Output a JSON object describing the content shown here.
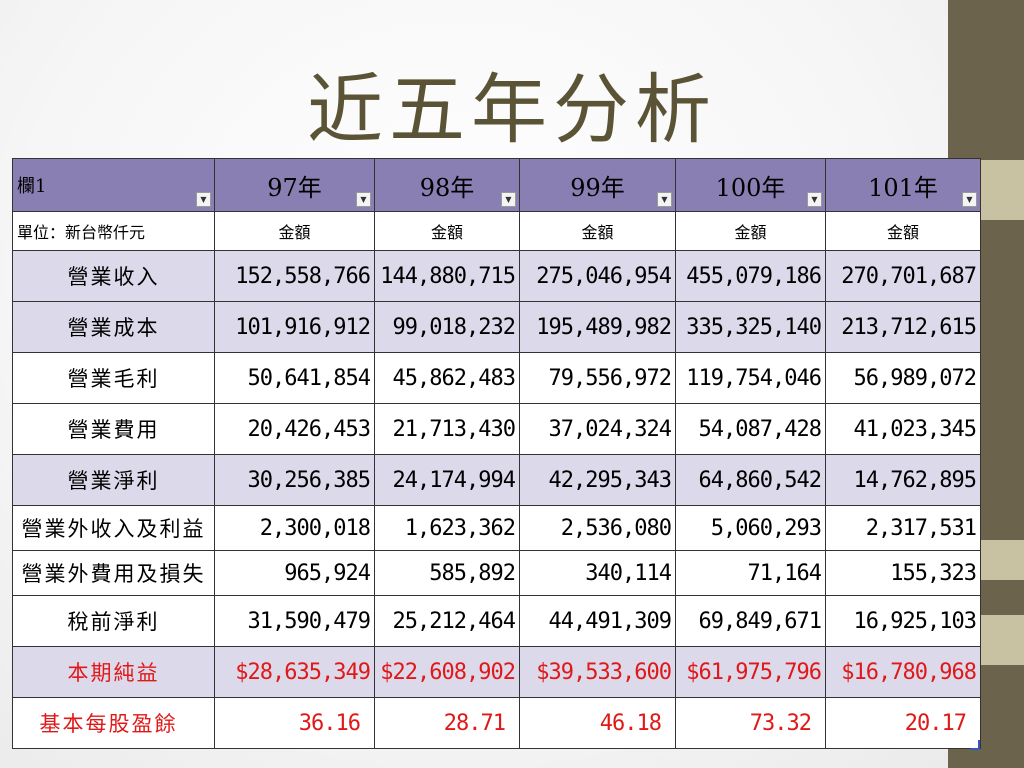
{
  "slide": {
    "title": "近五年分析",
    "accent_colors": {
      "sidebar": "#6b634b",
      "header": "#8a7fb2",
      "shade": "#dcd9ea",
      "highlight": "#e01818"
    }
  },
  "table": {
    "corner_header": "欄1",
    "columns": [
      "97年",
      "98年",
      "99年",
      "100年",
      "101年"
    ],
    "unit_label": "單位：新台幣仟元",
    "unit_cells": [
      "金額",
      "金額",
      "金額",
      "金額",
      "金額"
    ],
    "rows": [
      {
        "label": "營業收入",
        "values": [
          "152,558,766",
          "144,880,715",
          "275,046,954",
          "455,079,186",
          "270,701,687"
        ]
      },
      {
        "label": "營業成本",
        "values": [
          "101,916,912",
          "99,018,232",
          "195,489,982",
          "335,325,140",
          "213,712,615"
        ]
      },
      {
        "label": "營業毛利",
        "values": [
          "50,641,854",
          "45,862,483",
          "79,556,972",
          "119,754,046",
          "56,989,072"
        ]
      },
      {
        "label": "營業費用",
        "values": [
          "20,426,453",
          "21,713,430",
          "37,024,324",
          "54,087,428",
          "41,023,345"
        ]
      },
      {
        "label": "營業淨利",
        "values": [
          "30,256,385",
          "24,174,994",
          "42,295,343",
          "64,860,542",
          "14,762,895"
        ]
      },
      {
        "label": "營業外收入及利益",
        "values": [
          "2,300,018",
          "1,623,362",
          "2,536,080",
          "5,060,293",
          "2,317,531"
        ]
      },
      {
        "label": "營業外費用及損失",
        "values": [
          "965,924",
          "585,892",
          "340,114",
          "71,164",
          "155,323"
        ]
      },
      {
        "label": "稅前淨利",
        "values": [
          "31,590,479",
          "25,212,464",
          "44,491,309",
          "69,849,671",
          "16,925,103"
        ]
      },
      {
        "label": "本期純益",
        "values": [
          "$28,635,349",
          "$22,608,902",
          "$39,533,600",
          "$61,975,796",
          "$16,780,968"
        ]
      },
      {
        "label": "基本每股盈餘",
        "values": [
          "36.16",
          "28.71",
          "46.18",
          "73.32",
          "20.17"
        ]
      }
    ]
  }
}
